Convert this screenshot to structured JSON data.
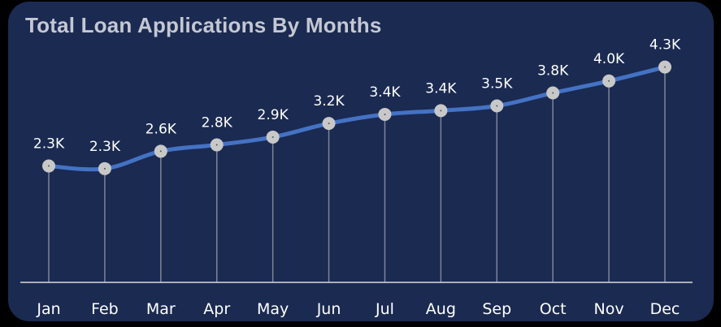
{
  "chart_data": {
    "type": "line",
    "title": "Total Loan Applications By Months",
    "categories": [
      "Jan",
      "Feb",
      "Mar",
      "Apr",
      "May",
      "Jun",
      "Jul",
      "Aug",
      "Sep",
      "Oct",
      "Nov",
      "Dec"
    ],
    "values": [
      2332,
      2279,
      2627,
      2755,
      2911,
      3184,
      3366,
      3441,
      3536,
      3796,
      4035,
      4314
    ],
    "data_labels": [
      "2.3K",
      "2.3K",
      "2.6K",
      "2.8K",
      "2.9K",
      "3.2K",
      "3.4K",
      "3.4K",
      "3.5K",
      "3.8K",
      "4.0K",
      "4.3K"
    ],
    "xlabel": "",
    "ylabel": "",
    "ylim": [
      0,
      5300
    ],
    "grid": false,
    "legend": "none",
    "colors": {
      "background": "#1b2a51",
      "page": "#000000",
      "line": "#4472c4",
      "marker": "#c8c8c8",
      "drop_line": "#7d8599",
      "axis": "#d9d9d9",
      "title": "#c4c8d2",
      "text": "#ffffff"
    }
  }
}
